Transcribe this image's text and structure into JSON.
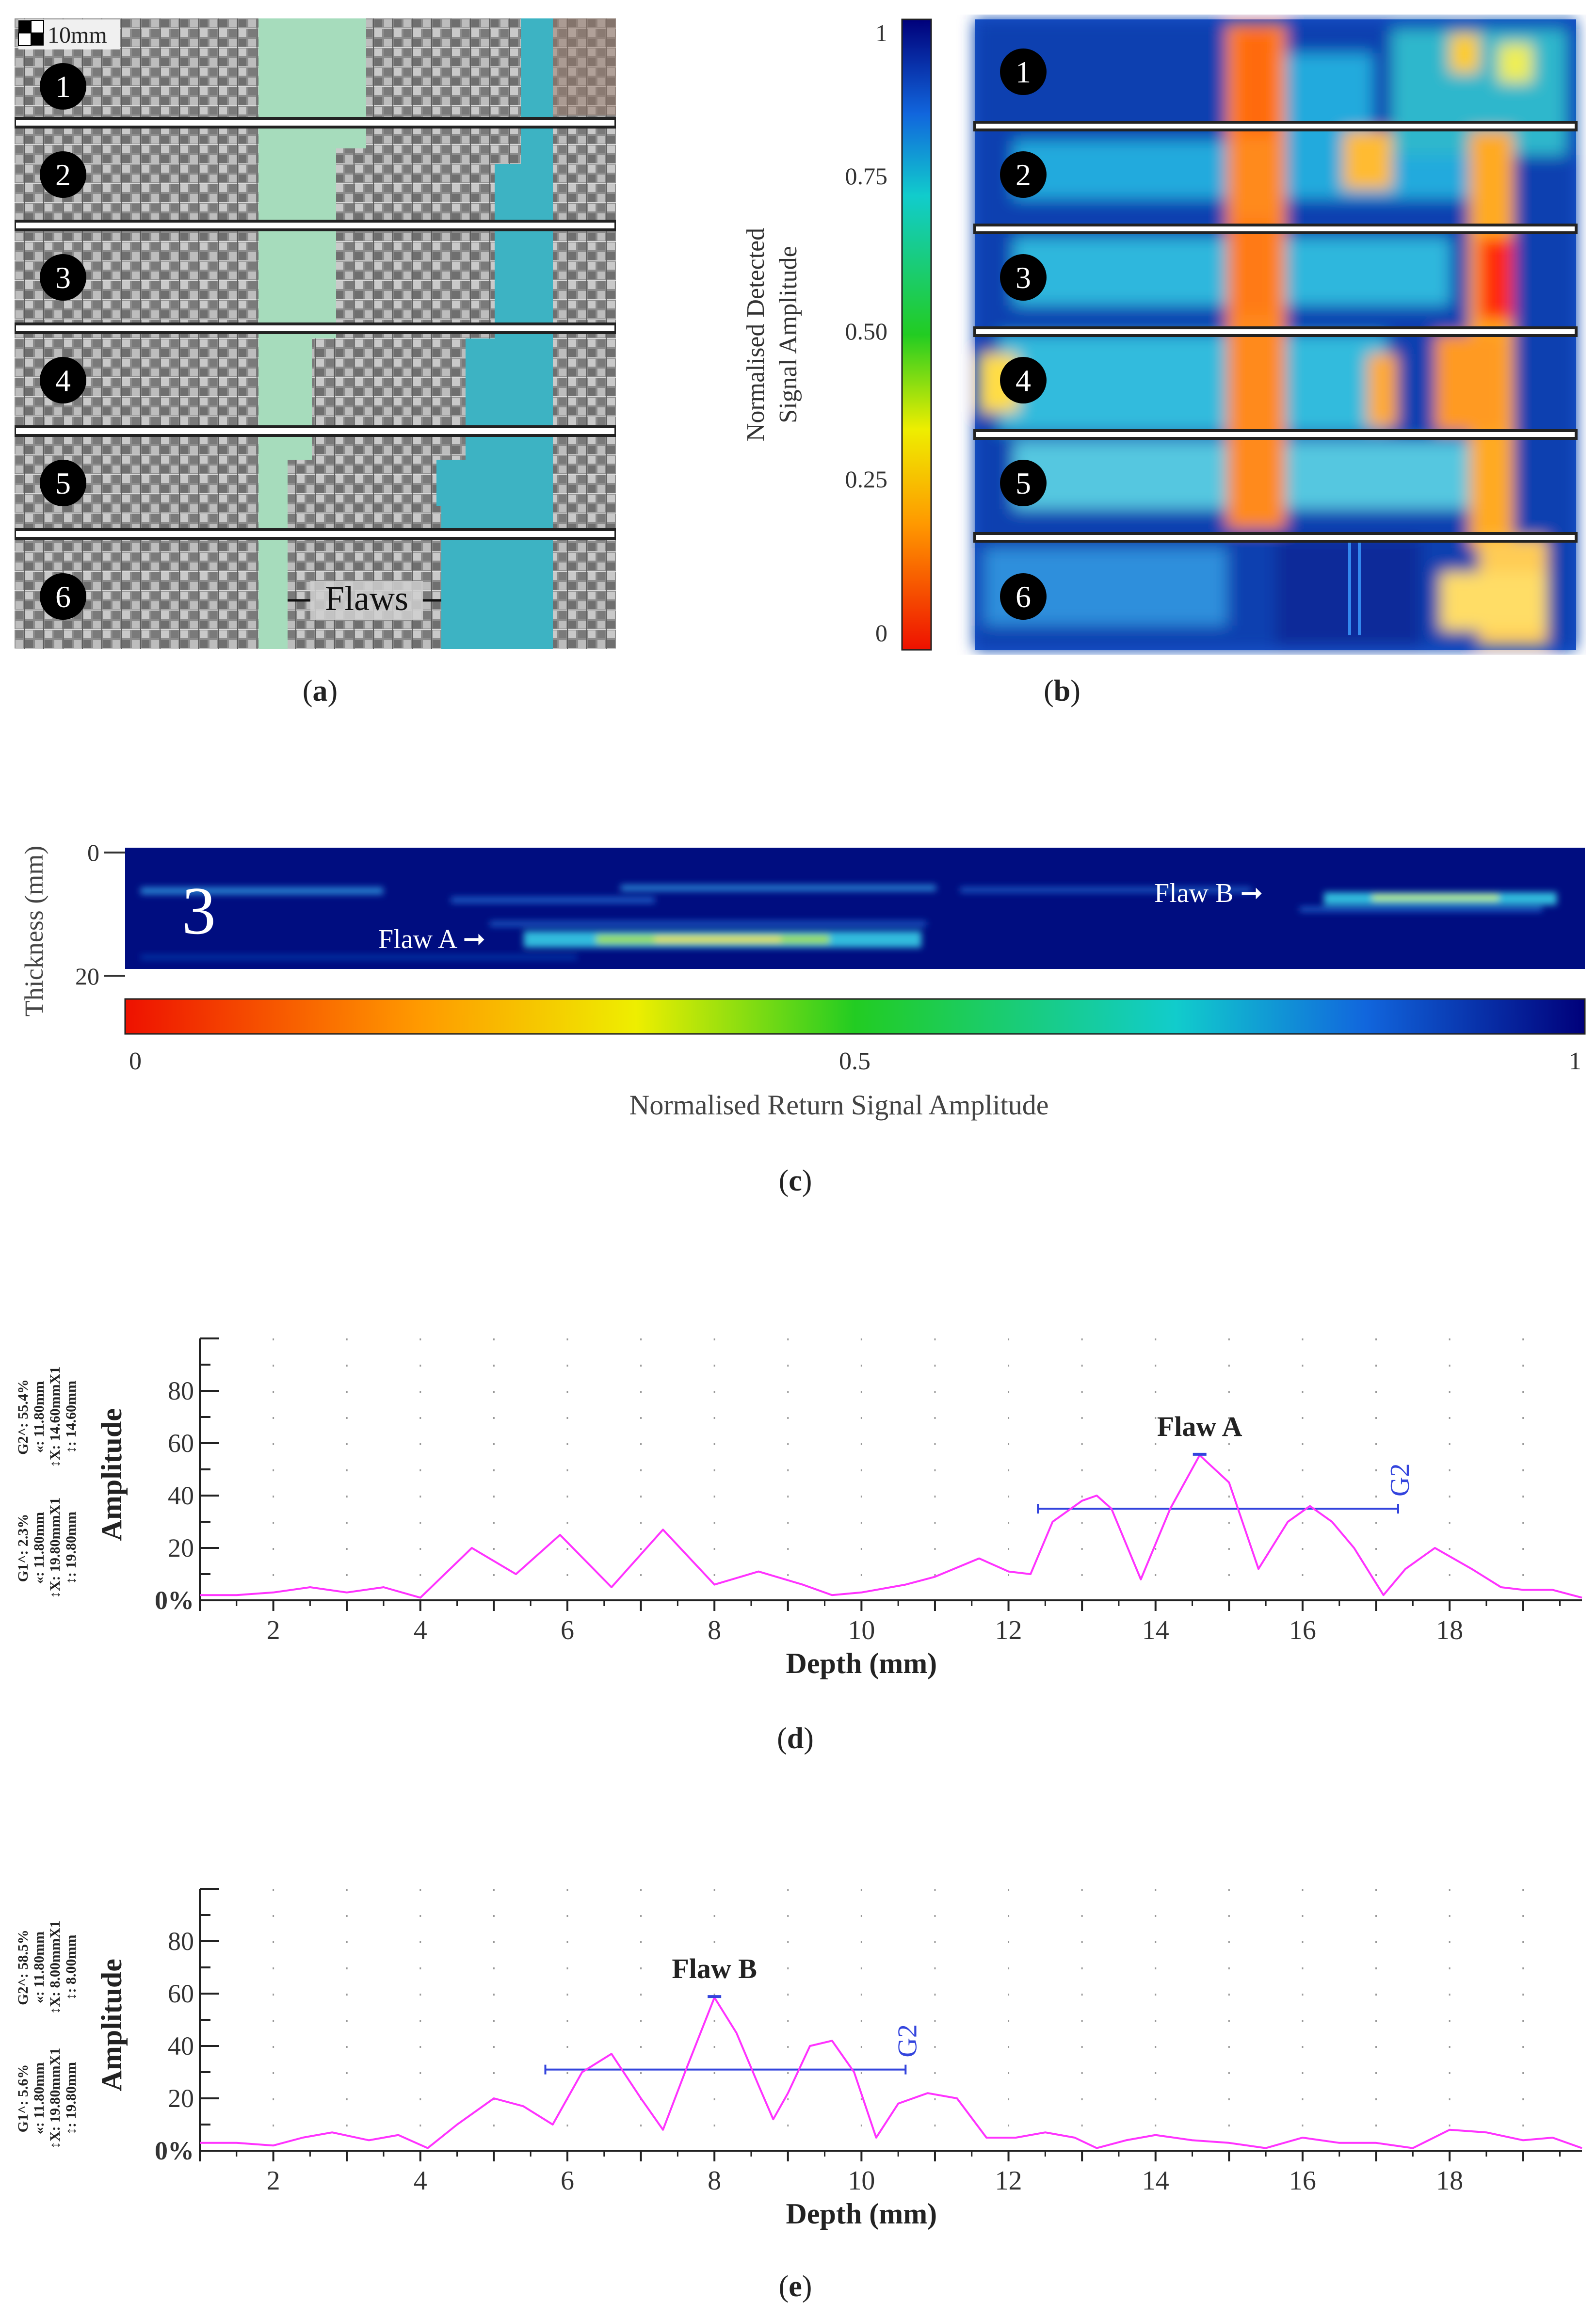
{
  "panel_a": {
    "scale_label": "10mm",
    "strips": [
      "1",
      "2",
      "3",
      "4",
      "5",
      "6"
    ],
    "flaws_label": "Flaws",
    "caption": {
      "open": "(",
      "letter": "a",
      "close": ")"
    },
    "colors": {
      "flaw_green": "#a6dcbc",
      "flaw_blue": "#3db3c3",
      "fabric": "#8c8c8c"
    }
  },
  "panel_b": {
    "colorbar_ticks": [
      "1",
      "0.75",
      "0.50",
      "0.25",
      "0"
    ],
    "colorbar_title_line1": "Normalised Detected",
    "colorbar_title_line2": "Signal Amplitude",
    "strips": [
      "1",
      "2",
      "3",
      "4",
      "5",
      "6"
    ],
    "caption": {
      "open": "(",
      "letter": "b",
      "close": ")"
    }
  },
  "panel_c": {
    "strip_number": "3",
    "ylabel": "Thickness (mm)",
    "yticks": [
      "0",
      "20"
    ],
    "flaw_a": "Flaw A ➞",
    "flaw_b": "Flaw B ➞",
    "colorbar_ticks": [
      "0",
      "0.5",
      "1"
    ],
    "colorbar_label": "Normalised Return Signal Amplitude",
    "caption": {
      "open": "(",
      "letter": "c",
      "close": ")"
    }
  },
  "chart_data": [
    {
      "type": "line",
      "id": "d",
      "xlabel": "Depth (mm)",
      "ylabel": "Amplitude",
      "xticks": [
        "2",
        "4",
        "6",
        "8",
        "10",
        "12",
        "14",
        "16",
        "18"
      ],
      "yticks": [
        "0%",
        "20",
        "40",
        "60",
        "80"
      ],
      "xlim": [
        1,
        19.8
      ],
      "ylim": [
        0,
        100
      ],
      "annotation": "Flaw A",
      "gate_label": "G2",
      "gate": {
        "x_start": 12.4,
        "x_end": 17.3,
        "level": 35
      },
      "peak": {
        "x": 14.6,
        "y": 55.4
      },
      "side_text": [
        "G2^: 55.4%",
        "«: 11.80mm",
        "↕X: 14.60mmX1",
        "↕: 14.60mm",
        "G1^: 2.3%",
        "«: 11.80mm",
        "↕X: 19.80mmX1",
        "↕: 19.80mm"
      ],
      "color": "#ff33ff",
      "gate_color": "#3344dd",
      "x": [
        1.0,
        1.5,
        2.0,
        2.5,
        3.0,
        3.5,
        4.0,
        4.7,
        5.3,
        5.9,
        6.6,
        7.3,
        8.0,
        8.6,
        9.2,
        9.6,
        10.0,
        10.6,
        11.0,
        11.6,
        12.0,
        12.3,
        12.6,
        13.0,
        13.2,
        13.4,
        13.8,
        14.2,
        14.6,
        15.0,
        15.4,
        15.8,
        16.1,
        16.4,
        16.7,
        17.1,
        17.4,
        17.8,
        18.3,
        18.7,
        19.0,
        19.4,
        19.8
      ],
      "y": [
        2,
        2,
        3,
        5,
        3,
        5,
        1,
        20,
        10,
        25,
        5,
        27,
        6,
        11,
        6,
        2,
        3,
        6,
        9,
        16,
        11,
        10,
        30,
        38,
        40,
        35,
        8,
        35,
        55.4,
        45,
        12,
        30,
        36,
        30,
        20,
        2,
        12,
        20,
        12,
        5,
        4,
        4,
        1
      ]
    },
    {
      "type": "line",
      "id": "e",
      "xlabel": "Depth (mm)",
      "ylabel": "Amplitude",
      "xticks": [
        "2",
        "4",
        "6",
        "8",
        "10",
        "12",
        "14",
        "16",
        "18"
      ],
      "yticks": [
        "0%",
        "20",
        "40",
        "60",
        "80"
      ],
      "xlim": [
        1,
        19.8
      ],
      "ylim": [
        0,
        100
      ],
      "annotation": "Flaw B",
      "gate_label": "G2",
      "gate": {
        "x_start": 5.7,
        "x_end": 10.6,
        "level": 31
      },
      "peak": {
        "x": 8.0,
        "y": 58.5
      },
      "side_text": [
        "G2^: 58.5%",
        "«: 11.80mm",
        "↕X: 8.00mmX1",
        "↕: 8.00mm",
        "G1^: 5.6%",
        "«: 11.80mm",
        "↕X: 19.80mmX1",
        "↕: 19.80mm"
      ],
      "color": "#ff33ff",
      "gate_color": "#3344dd",
      "x": [
        1.0,
        1.5,
        2.0,
        2.4,
        2.8,
        3.3,
        3.7,
        4.1,
        4.5,
        5.0,
        5.4,
        5.8,
        6.2,
        6.6,
        7.0,
        7.3,
        7.6,
        8.0,
        8.3,
        8.6,
        8.8,
        9.0,
        9.3,
        9.6,
        9.9,
        10.2,
        10.5,
        10.9,
        11.3,
        11.7,
        12.1,
        12.5,
        12.9,
        13.2,
        13.6,
        14.0,
        14.5,
        15.0,
        15.5,
        16.0,
        16.5,
        17.0,
        17.5,
        18.0,
        18.5,
        19.0,
        19.4,
        19.8
      ],
      "y": [
        3,
        3,
        2,
        5,
        7,
        4,
        6,
        1,
        10,
        20,
        17,
        10,
        30,
        37,
        20,
        8,
        30,
        58.5,
        45,
        25,
        12,
        22,
        40,
        42,
        30,
        5,
        18,
        22,
        20,
        5,
        5,
        7,
        5,
        1,
        4,
        6,
        4,
        3,
        1,
        5,
        3,
        3,
        1,
        8,
        7,
        4,
        5,
        1
      ]
    }
  ],
  "caption_d": {
    "open": "(",
    "letter": "d",
    "close": ")"
  },
  "caption_e": {
    "open": "(",
    "letter": "e",
    "close": ")"
  }
}
